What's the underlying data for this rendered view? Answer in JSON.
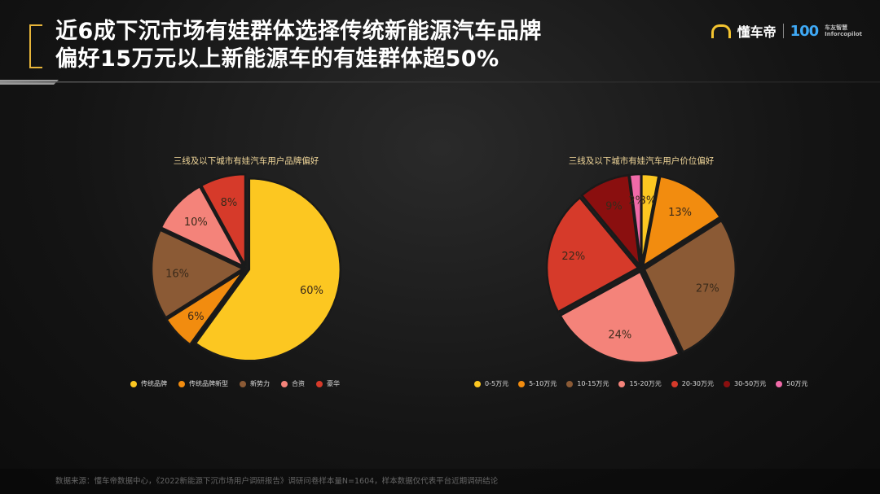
{
  "header": {
    "title_line1": "近6成下沉市场有娃群体选择传统新能源汽车品牌",
    "title_line2": "偏好15万元以上新能源车的有娃群体超50%",
    "brand_name": "懂车帝",
    "brand_badge": "100",
    "brand_small1": "车友智慧",
    "brand_small2": "Inforcopilot",
    "accent_color": "#e7b53a"
  },
  "footer": {
    "source": "数据来源：懂车帝数据中心，《2022新能源下沉市场用户调研报告》调研问卷样本量N=1604，样本数据仅代表平台近期调研结论"
  },
  "chart_data": [
    {
      "type": "pie",
      "title": "三线及以下城市有娃汽车用户品牌偏好",
      "slices": [
        {
          "label": "传统品牌",
          "value": 60,
          "text": "60%",
          "color": "#fcc721"
        },
        {
          "label": "传统品牌新型",
          "value": 6,
          "text": "6%",
          "color": "#f28c0f"
        },
        {
          "label": "新势力",
          "value": 16,
          "text": "16%",
          "color": "#8b5a35"
        },
        {
          "label": "合资",
          "value": 10,
          "text": "10%",
          "color": "#f4837a"
        },
        {
          "label": "豪华",
          "value": 8,
          "text": "8%",
          "color": "#d63a2a"
        }
      ],
      "legend": "bottom"
    },
    {
      "type": "pie",
      "title": "三线及以下城市有娃汽车用户价位偏好",
      "slices": [
        {
          "label": "0-5万元",
          "value": 3,
          "text": "3%",
          "color": "#fcc721"
        },
        {
          "label": "5-10万元",
          "value": 13,
          "text": "13%",
          "color": "#f28c0f"
        },
        {
          "label": "10-15万元",
          "value": 27,
          "text": "27%",
          "color": "#8b5a35"
        },
        {
          "label": "15-20万元",
          "value": 24,
          "text": "24%",
          "color": "#f4837a"
        },
        {
          "label": "20-30万元",
          "value": 22,
          "text": "22%",
          "color": "#d63a2a"
        },
        {
          "label": "30-50万元",
          "value": 9,
          "text": "9%",
          "color": "#8a0f0f"
        },
        {
          "label": "50万元",
          "value": 2,
          "text": "2%",
          "color": "#f06aa8"
        }
      ],
      "legend": "bottom"
    }
  ]
}
